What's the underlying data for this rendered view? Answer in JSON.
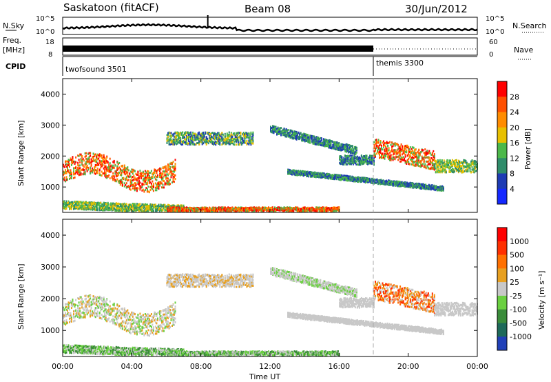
{
  "header": {
    "station": "Saskatoon (fitACF)",
    "beam": "Beam 08",
    "date": "30/Jun/2012"
  },
  "strips": {
    "nsky_label": "N.Sky",
    "nsky_ticks": [
      "10^5",
      "10^0"
    ],
    "nsearch_label": "N.Search",
    "freq_label": "Freq.",
    "freq_unit": "[MHz]",
    "freq_ticks": [
      "18",
      "8"
    ],
    "nave_ticks": [
      "60",
      "0"
    ],
    "nave_label": "Nave",
    "cpid_label": "CPID",
    "cpid_segments": [
      {
        "label": "twofsound 3501",
        "start_hour": 0
      },
      {
        "label": "themis 3300",
        "start_hour": 18
      }
    ]
  },
  "xaxis": {
    "label": "Time UT",
    "ticks": [
      "00:00",
      "04:00",
      "08:00",
      "12:00",
      "16:00",
      "20:00",
      "00:00"
    ]
  },
  "colors": {
    "power": [
      "#1428ff",
      "#1e3cb4",
      "#2f8c6a",
      "#4cb84a",
      "#e8c000",
      "#ff8c00",
      "#ff5000",
      "#ff0000"
    ],
    "velocity": [
      "#2040b8",
      "#1e6a5a",
      "#3a8c3a",
      "#6ad040",
      "#c8c8c8",
      "#e8a020",
      "#ff7000",
      "#ff3000",
      "#ff0000"
    ]
  },
  "chart_data": [
    {
      "type": "heatmap",
      "title": "Power",
      "ylabel": "Slant Range [km]",
      "xlabel": "Time UT",
      "x_range_hours": [
        0,
        24
      ],
      "ylim": [
        180,
        4500
      ],
      "yticks": [
        "1000",
        "2000",
        "3000",
        "4000"
      ],
      "colorbar_label": "Power [dB]",
      "colorbar_ticks": [
        "28",
        "24",
        "20",
        "16",
        "12",
        "8",
        "4"
      ],
      "cpid_change_hour": 18
    },
    {
      "type": "heatmap",
      "title": "Velocity",
      "ylabel": "Slant Range [km]",
      "xlabel": "Time UT",
      "x_range_hours": [
        0,
        24
      ],
      "ylim": [
        180,
        4500
      ],
      "yticks": [
        "1000",
        "2000",
        "3000",
        "4000"
      ],
      "colorbar_label": "Velocity [m s⁻¹]",
      "colorbar_ticks": [
        "1000",
        "500",
        "100",
        "25",
        "-25",
        "-100",
        "-500",
        "-1000"
      ],
      "cpid_change_hour": 18
    }
  ]
}
